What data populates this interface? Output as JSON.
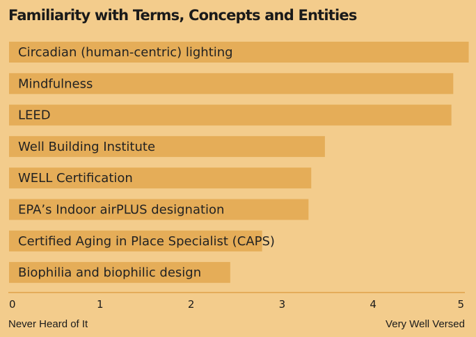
{
  "chart_data": {
    "type": "bar",
    "orientation": "horizontal",
    "title": "Familiarity with Terms, Concepts and Entities",
    "categories": [
      "Circadian (human-centric) lighting",
      "Mindfulness",
      "LEED",
      "Well Building Institute",
      "WELL Certification",
      "EPA’s Indoor airPLUS designation",
      "Certified Aging in Place Specialist (CAPS)",
      "Biophilia and biophilic design"
    ],
    "values": [
      5.05,
      4.88,
      4.86,
      3.47,
      3.32,
      3.29,
      2.78,
      2.43
    ],
    "xlim": [
      0,
      5
    ],
    "xticks": [
      "0",
      "1",
      "2",
      "3",
      "4",
      "5"
    ],
    "scale_low_label": "Never Heard of It",
    "scale_high_label": "Very Well Versed",
    "grid": false,
    "legend": "none",
    "colors": {
      "bar": "#e5ad58",
      "background": "#f3cc8c",
      "axis": "#e0a14a"
    }
  }
}
